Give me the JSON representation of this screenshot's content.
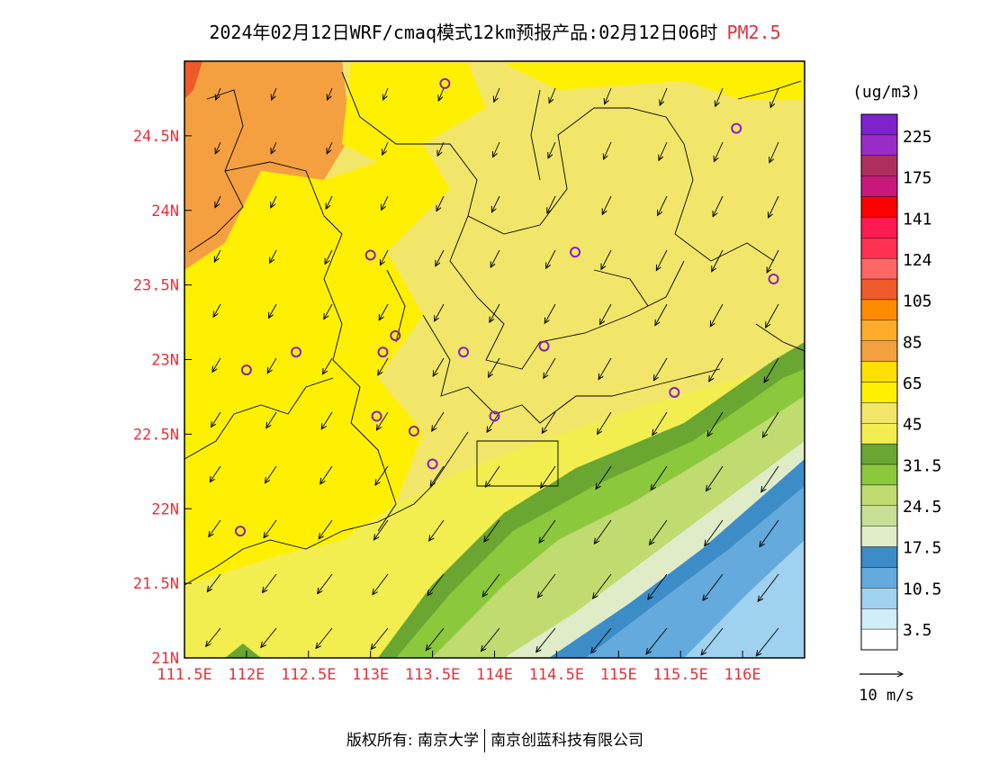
{
  "title": {
    "text": "2024年02月12日WRF/cmaq模式12km预报产品:02月12日06时",
    "pollutant": "PM2.5"
  },
  "map": {
    "x_ticks": [
      "111.5E",
      "112E",
      "112.5E",
      "113E",
      "113.5E",
      "114E",
      "114.5E",
      "115E",
      "115.5E",
      "116E"
    ],
    "y_ticks": [
      "21N",
      "21.5N",
      "22N",
      "22.5N",
      "23N",
      "23.5N",
      "24N",
      "24.5N"
    ],
    "lon_range": [
      111.5,
      116.5
    ],
    "lat_range": [
      21.0,
      25.0
    ],
    "stations": [
      [
        113.6,
        24.85
      ],
      [
        115.95,
        24.55
      ],
      [
        113.0,
        23.7
      ],
      [
        114.65,
        23.72
      ],
      [
        116.25,
        23.54
      ],
      [
        113.2,
        23.16
      ],
      [
        113.1,
        23.05
      ],
      [
        112.4,
        23.05
      ],
      [
        112.0,
        22.93
      ],
      [
        113.75,
        23.05
      ],
      [
        114.4,
        23.09
      ],
      [
        115.45,
        22.78
      ],
      [
        113.05,
        22.62
      ],
      [
        113.35,
        22.52
      ],
      [
        114.0,
        22.62
      ],
      [
        113.5,
        22.3
      ],
      [
        111.95,
        21.85
      ]
    ]
  },
  "legend": {
    "unit": "(ug/m3)",
    "labels": [
      "225",
      "175",
      "141",
      "124",
      "105",
      "85",
      "65",
      "45",
      "31.5",
      "24.5",
      "17.5",
      "10.5",
      "3.5"
    ],
    "colors_top_to_bottom": [
      "#7d22cc",
      "#9b2bc8",
      "#ad2f5e",
      "#c8187d",
      "#ff0000",
      "#ff1a50",
      "#ff3050",
      "#ff6666",
      "#ef5a2a",
      "#ff8c00",
      "#ffac2a",
      "#f5a040",
      "#ffe000",
      "#fff000",
      "#f2e66a",
      "#f2ee50",
      "#6aa632",
      "#8cc83c",
      "#c0dc70",
      "#c8e096",
      "#e0ecc8",
      "#3c8cc8",
      "#64aadc",
      "#a0d2f0",
      "#d2ecf8",
      "#ffffff"
    ],
    "wind_label": "10 m/s"
  },
  "footer": {
    "copyright": "版权所有: 南京大学",
    "company": "南京创蓝科技有限公司"
  }
}
